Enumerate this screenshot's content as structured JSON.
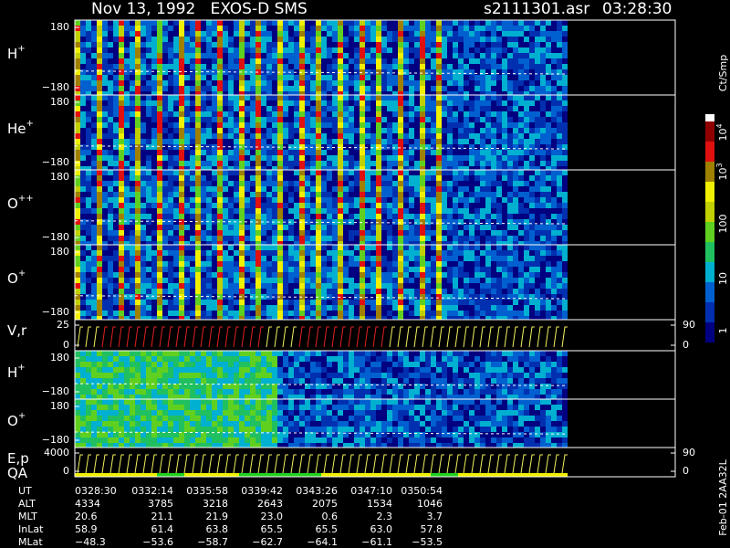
{
  "chart_data": {
    "type": "spectrogram",
    "title": "Nov 13, 1992   EXOS-D SMS",
    "file": "s2111301.asr",
    "time": "03:28:30",
    "panels": [
      {
        "label": "H",
        "charge": "+",
        "ylim": [
          -180,
          180
        ],
        "yticks": [
          180,
          {
            "value": -180,
            "label": "−180"
          }
        ]
      },
      {
        "label": "He",
        "charge": "+",
        "ylim": [
          -180,
          180
        ],
        "yticks": [
          180,
          {
            "value": -180,
            "label": "−180"
          }
        ]
      },
      {
        "label": "O",
        "charge": "++",
        "ylim": [
          -180,
          180
        ],
        "yticks": [
          180,
          {
            "value": -180,
            "label": "−180"
          }
        ]
      },
      {
        "label": "O",
        "charge": "+",
        "ylim": [
          -180,
          180
        ],
        "yticks": [
          180,
          {
            "value": -180,
            "label": "−180"
          }
        ]
      },
      {
        "label": "V,r",
        "ylim": [
          0,
          25
        ],
        "yticks": [
          25,
          0
        ],
        "y2lim": [
          0,
          90
        ],
        "y2ticks": [
          90,
          0
        ]
      },
      {
        "label": "H",
        "charge": "+",
        "ylim": [
          -180,
          180
        ],
        "yticks": [
          180,
          {
            "value": -180,
            "label": "−180"
          }
        ]
      },
      {
        "label": "O",
        "charge": "+",
        "ylim": [
          -180,
          180
        ],
        "yticks": [
          180,
          {
            "value": -180,
            "label": "−180"
          }
        ]
      },
      {
        "label": "E,p",
        "label2": "QA",
        "ylim": [
          0,
          4000
        ],
        "yticks": [
          4000,
          0
        ],
        "y2lim": [
          0,
          90
        ],
        "y2ticks": [
          90,
          0
        ]
      }
    ],
    "colorbar": {
      "unit": "Ct/Smp",
      "ticks": [
        {
          "base": "10",
          "exp": "4"
        },
        {
          "base": "10",
          "exp": "3"
        },
        {
          "base": "100"
        },
        {
          "base": "10"
        },
        {
          "base": "1"
        }
      ]
    },
    "table": {
      "rows": [
        {
          "name": "UT",
          "cells": [
            "0328:30",
            "0332:14",
            "0335:58",
            "0339:42",
            "0343:26",
            "0347:10",
            "0350:54"
          ]
        },
        {
          "name": "ALT",
          "cells": [
            "4334",
            "3785",
            "3218",
            "2643",
            "2075",
            "1534",
            "1046"
          ]
        },
        {
          "name": "MLT",
          "cells": [
            "20.6",
            "21.1",
            "21.9",
            "23.0",
            "0.6",
            "2.3",
            "3.7"
          ]
        },
        {
          "name": "InLat",
          "cells": [
            "58.9",
            "61.4",
            "63.8",
            "65.5",
            "65.5",
            "63.0",
            "57.8"
          ]
        },
        {
          "name": "MLat",
          "cells": [
            "−48.3",
            "−53.6",
            "−58.7",
            "−62.7",
            "−64.1",
            "−61.1",
            "−53.5"
          ]
        }
      ]
    },
    "footer": "Feb-01 2AA32L"
  }
}
